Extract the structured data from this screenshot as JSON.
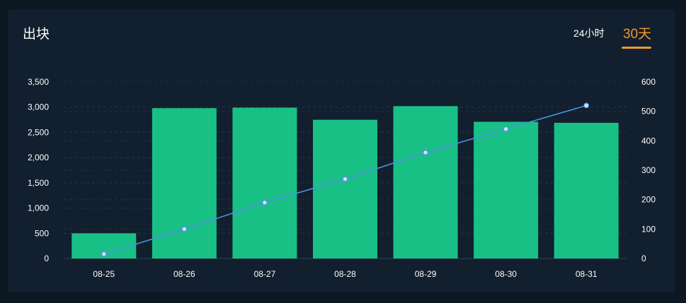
{
  "header": {
    "title": "出块",
    "tabs": [
      {
        "label": "24小时",
        "active": false
      },
      {
        "label": "30天",
        "active": true
      }
    ]
  },
  "colors": {
    "background": "#111f2e",
    "bar": "#19c086",
    "line": "#4f8fdf",
    "active_tab": "#f39a2c"
  },
  "chart_data": {
    "type": "bar",
    "categories": [
      "08-25",
      "08-26",
      "08-27",
      "08-28",
      "08-29",
      "08-30",
      "08-31"
    ],
    "series": [
      {
        "type": "bar",
        "axis": "left",
        "values": [
          500,
          2980,
          2990,
          2750,
          3020,
          2710,
          2690
        ]
      },
      {
        "type": "line",
        "axis": "right",
        "values": [
          15,
          100,
          190,
          270,
          360,
          440,
          520
        ]
      }
    ],
    "y_left": {
      "min": 0,
      "max": 3500,
      "ticks": [
        0,
        500,
        1000,
        1500,
        2000,
        2500,
        3000,
        3500
      ]
    },
    "y_right": {
      "min": 0,
      "max": 600,
      "ticks": [
        0,
        100,
        200,
        300,
        400,
        500,
        600
      ]
    },
    "grid": true
  }
}
